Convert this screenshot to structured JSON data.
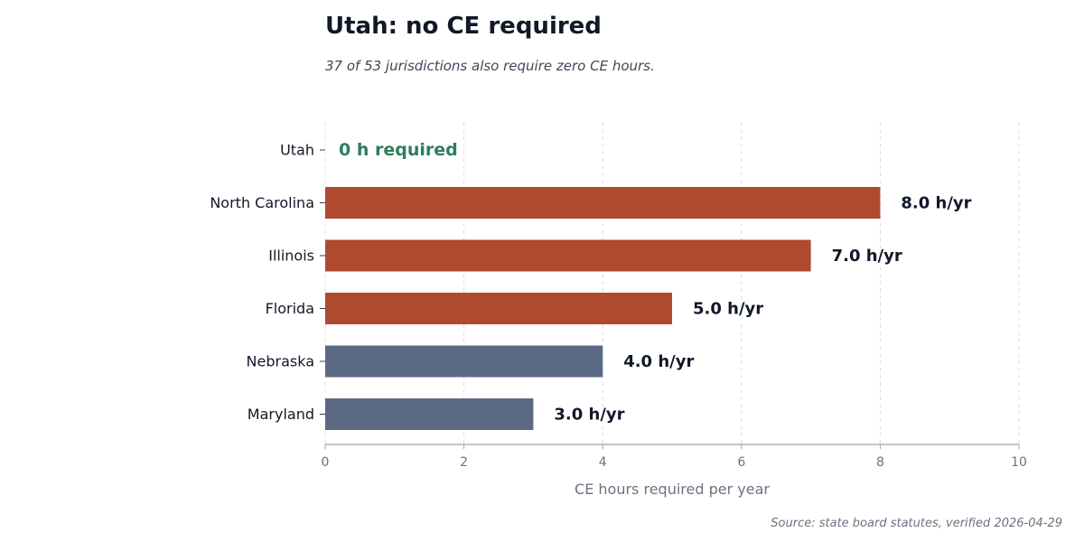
{
  "chart_data": {
    "type": "bar",
    "orientation": "horizontal",
    "title": "Utah: no CE required",
    "subtitle": "37 of 53 jurisdictions also require zero CE hours.",
    "xlabel": "CE hours required per year",
    "ylabel": "",
    "xlim": [
      0,
      10
    ],
    "xticks": [
      0,
      2,
      4,
      6,
      8,
      10
    ],
    "grid": "vertical dashed",
    "categories": [
      "Utah",
      "North Carolina",
      "Illinois",
      "Florida",
      "Nebraska",
      "Maryland"
    ],
    "values": [
      0,
      8.0,
      7.0,
      5.0,
      4.0,
      3.0
    ],
    "value_labels": [
      "0 h required",
      "8.0 h/yr",
      "7.0 h/yr",
      "5.0 h/yr",
      "4.0 h/yr",
      "3.0 h/yr"
    ],
    "bar_colors": [
      "#2e7d5b",
      "#b04a2f",
      "#b04a2f",
      "#b04a2f",
      "#5b6a84",
      "#5b6a84"
    ],
    "label_colors": [
      "#2e7d5b",
      "#111827",
      "#111827",
      "#111827",
      "#111827",
      "#111827"
    ],
    "source": "Source: state board statutes, verified 2026-04-29"
  }
}
